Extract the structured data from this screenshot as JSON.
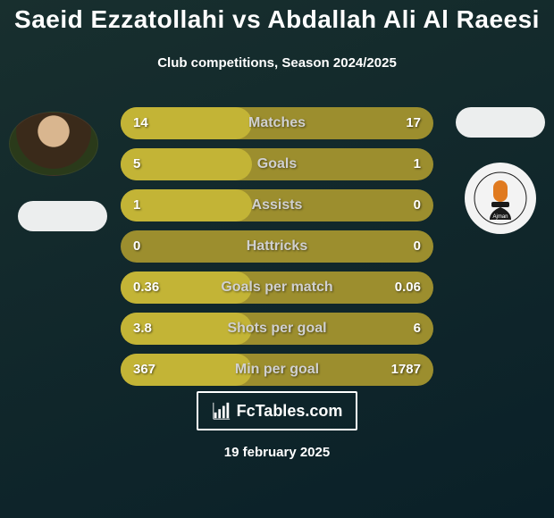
{
  "background_color": "#0f2930",
  "bg_gradient_from": "#182f2e",
  "bg_gradient_to": "#0a2028",
  "title": "Saeid Ezzatollahi vs Abdallah Ali Al Raeesi",
  "title_color": "#ffffff",
  "title_fontsize": 28,
  "subtitle": "Club competitions, Season 2024/2025",
  "subtitle_color": "#ffffff",
  "subtitle_fontsize": 15,
  "bar_bg_color": "#9c8e2e",
  "bar_highlight_color": "#c3b436",
  "bar_label_color": "#d0d0d0",
  "bar_value_color": "#ffffff",
  "bars": [
    {
      "label": "Matches",
      "left": "14",
      "right": "17",
      "leftNum": 14,
      "rightNum": 17,
      "highlight": "left"
    },
    {
      "label": "Goals",
      "left": "5",
      "right": "1",
      "leftNum": 5,
      "rightNum": 1,
      "highlight": "left"
    },
    {
      "label": "Assists",
      "left": "1",
      "right": "0",
      "leftNum": 1,
      "rightNum": 0,
      "highlight": "left"
    },
    {
      "label": "Hattricks",
      "left": "0",
      "right": "0",
      "leftNum": 0,
      "rightNum": 0,
      "highlight": "none"
    },
    {
      "label": "Goals per match",
      "left": "0.36",
      "right": "0.06",
      "leftNum": 0.36,
      "rightNum": 0.06,
      "highlight": "left"
    },
    {
      "label": "Shots per goal",
      "left": "3.8",
      "right": "6",
      "leftNum": 3.8,
      "rightNum": 6,
      "highlight": "left"
    },
    {
      "label": "Min per goal",
      "left": "367",
      "right": "1787",
      "leftNum": 367,
      "rightNum": 1787,
      "highlight": "left"
    }
  ],
  "highlight_left_width_pct": 42,
  "footer_brand": "FcTables.com",
  "footer_border_color": "#ffffff",
  "date": "19 february 2025",
  "club_right_name": "Ajman",
  "club_right_accent": "#e07a1f",
  "club_right_bg": "#f3f3f3"
}
